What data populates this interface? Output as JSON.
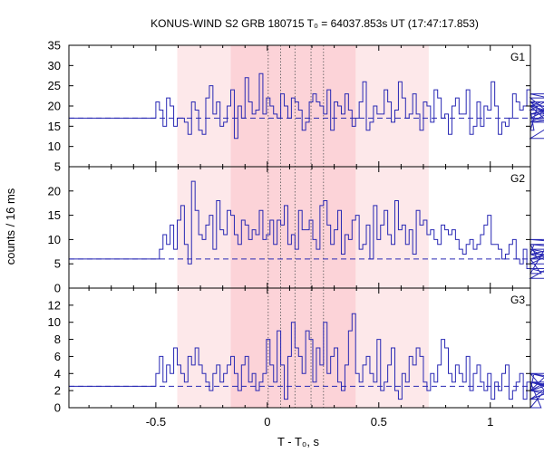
{
  "chart_data": {
    "type": "line",
    "title": "KONUS-WIND S2 GRB 180715 T₀ = 64037.853s UT (17:47:17.853)",
    "xlabel": "T - T₀, s",
    "ylabel": "counts / 16 ms",
    "xlim": [
      -0.89,
      1.18
    ],
    "x_ticks": [
      -0.5,
      0,
      0.5,
      1
    ],
    "x_tick_labels": [
      "-0.5",
      "0",
      "0.5",
      "1"
    ],
    "bin_width": 0.016,
    "interval_outer": [
      -0.404,
      0.724
    ],
    "interval_inner": [
      -0.164,
      0.396
    ],
    "dotted_lines": [
      0.004,
      0.06,
      0.124,
      0.196,
      0.252
    ],
    "colors": {
      "line": "#2828b4",
      "background_dash": "#2828b4",
      "outer_band": "#fde8ea",
      "inner_band": "#fcd3d8",
      "dotted": "#555555"
    },
    "panels": [
      {
        "label": "G1",
        "ylim": [
          5,
          35
        ],
        "y_ticks": [
          5,
          10,
          15,
          20,
          25,
          30,
          35
        ],
        "y_tick_labels": [
          "5",
          "10",
          "15",
          "20",
          "25",
          "30",
          "35"
        ],
        "background": 17,
        "counts": [
          21,
          19,
          15,
          22,
          20,
          15,
          17,
          17,
          16,
          13,
          21,
          19,
          14,
          13,
          22,
          25,
          18,
          21,
          15,
          16,
          20,
          24,
          12,
          20,
          17,
          27,
          21,
          18,
          19,
          28,
          18,
          22,
          20,
          18,
          17,
          23,
          20,
          17,
          22,
          21,
          19,
          14,
          16,
          21,
          23,
          21,
          20,
          18,
          24,
          14,
          21,
          20,
          18,
          23,
          19,
          15,
          17,
          21,
          26,
          14,
          16,
          20,
          18,
          18,
          24,
          21,
          16,
          19,
          26,
          22,
          17,
          18,
          23,
          18,
          14,
          21,
          20,
          16,
          24,
          22,
          17,
          18,
          13,
          20,
          22,
          18,
          18,
          24,
          13,
          15,
          21,
          15,
          20,
          19,
          26,
          20,
          13,
          16,
          15,
          17,
          23,
          21,
          19,
          20,
          24,
          19,
          14,
          20,
          21,
          18,
          19,
          22,
          17,
          16,
          20,
          12,
          18,
          21,
          17,
          23,
          20,
          16,
          18
        ]
      },
      {
        "label": "G2",
        "ylim": [
          0,
          25
        ],
        "y_ticks": [
          0,
          5,
          10,
          15,
          20
        ],
        "y_tick_labels": [
          "0",
          "5",
          "10",
          "15",
          "20"
        ],
        "background": 6,
        "counts": [
          6,
          8,
          11,
          9,
          13,
          8,
          14,
          17,
          9,
          5,
          22,
          16,
          11,
          10,
          13,
          15,
          8,
          18,
          12,
          11,
          16,
          15,
          11,
          9,
          14,
          13,
          10,
          12,
          11,
          16,
          10,
          11,
          14,
          9,
          14,
          13,
          17,
          9,
          11,
          8,
          16,
          12,
          12,
          14,
          10,
          8,
          17,
          18,
          13,
          9,
          12,
          16,
          7,
          11,
          10,
          14,
          15,
          8,
          9,
          13,
          6,
          17,
          10,
          13,
          16,
          11,
          9,
          18,
          12,
          13,
          9,
          12,
          7,
          16,
          13,
          14,
          11,
          12,
          10,
          9,
          13,
          12,
          11,
          12,
          10,
          8,
          7,
          9,
          10,
          8,
          9,
          11,
          13,
          15,
          9,
          9,
          8,
          6,
          7,
          9,
          10,
          6,
          5,
          8,
          4,
          7,
          9,
          6,
          3,
          8,
          6,
          7,
          5,
          5,
          8,
          4,
          2,
          7,
          9,
          8,
          6,
          10,
          9
        ]
      },
      {
        "label": "G3",
        "ylim": [
          0,
          14
        ],
        "y_ticks": [
          0,
          2,
          4,
          6,
          8,
          10,
          12
        ],
        "y_tick_labels": [
          "0",
          "2",
          "4",
          "6",
          "8",
          "10",
          "12"
        ],
        "background": 2.5,
        "counts": [
          4,
          6,
          3,
          5,
          4,
          7,
          5,
          4,
          3,
          6,
          5,
          7,
          5,
          4,
          3,
          2,
          4,
          5,
          3,
          4,
          5,
          6,
          4,
          2,
          5,
          6,
          3,
          4,
          2,
          3,
          4,
          8,
          5,
          3,
          9,
          5,
          1,
          6,
          10,
          7,
          6,
          4,
          9,
          8,
          3,
          7,
          5,
          10,
          4,
          6,
          7,
          3,
          2,
          5,
          9,
          11,
          4,
          3,
          5,
          6,
          4,
          3,
          8,
          2,
          3,
          5,
          7,
          2,
          1,
          4,
          3,
          6,
          5,
          7,
          6,
          3,
          2,
          4,
          3,
          5,
          8,
          7,
          4,
          3,
          5,
          4,
          3,
          6,
          2,
          4,
          5,
          3,
          2,
          4,
          1,
          3,
          2,
          4,
          5,
          1,
          2,
          3,
          4,
          1,
          3,
          2,
          4,
          3,
          0,
          2,
          4,
          1,
          3,
          2,
          4,
          3,
          2,
          1,
          3,
          2,
          4,
          3,
          2
        ]
      }
    ]
  }
}
